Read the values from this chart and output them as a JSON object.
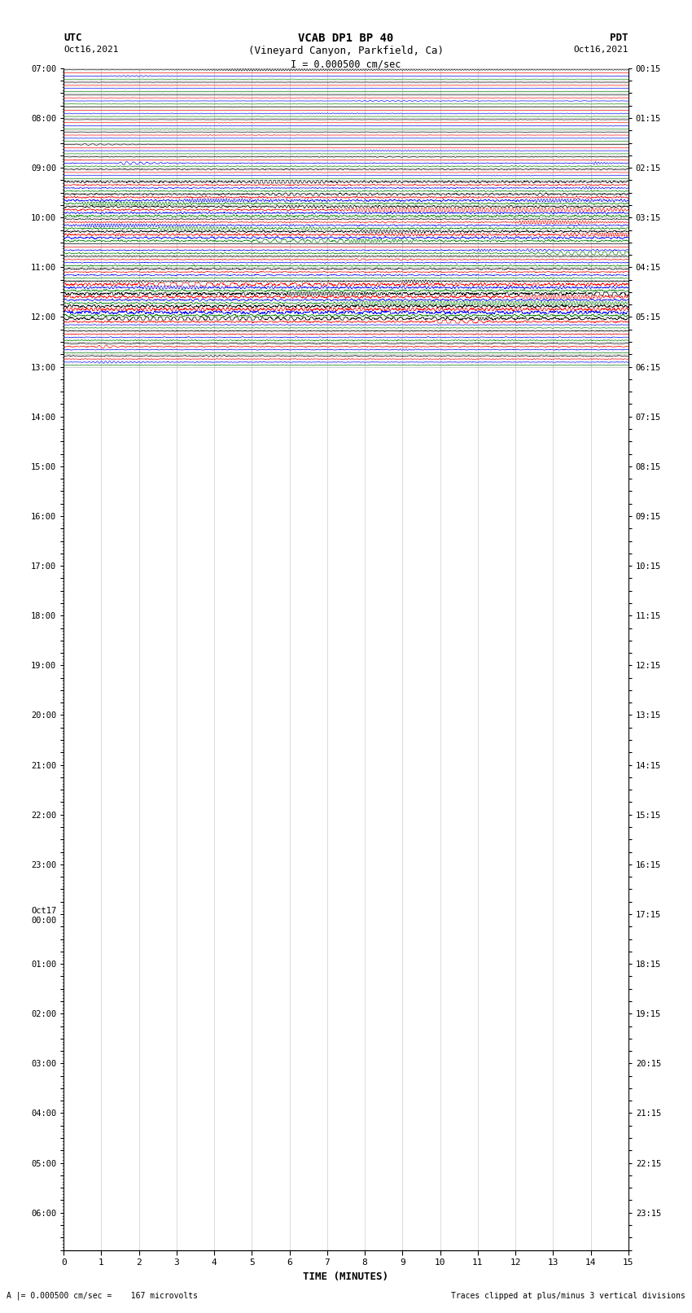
{
  "title_line1": "VCAB DP1 BP 40",
  "title_line2": "(Vineyard Canyon, Parkfield, Ca)",
  "scale_label": "I = 0.000500 cm/sec",
  "utc_label": "UTC",
  "pdt_label": "PDT",
  "date_left": "Oct16,2021",
  "date_right": "Oct16,2021",
  "xlabel": "TIME (MINUTES)",
  "bottom_left": "A |= 0.000500 cm/sec =    167 microvolts",
  "bottom_right": "Traces clipped at plus/minus 3 vertical divisions",
  "trace_color_cycle": [
    "black",
    "red",
    "blue",
    "green"
  ],
  "num_rows": 96,
  "bg_color": "#ffffff",
  "left_times_utc": [
    "07:00",
    "",
    "",
    "",
    "08:00",
    "",
    "",
    "",
    "09:00",
    "",
    "",
    "",
    "10:00",
    "",
    "",
    "",
    "11:00",
    "",
    "",
    "",
    "12:00",
    "",
    "",
    "",
    "13:00",
    "",
    "",
    "",
    "14:00",
    "",
    "",
    "",
    "15:00",
    "",
    "",
    "",
    "16:00",
    "",
    "",
    "",
    "17:00",
    "",
    "",
    "",
    "18:00",
    "",
    "",
    "",
    "19:00",
    "",
    "",
    "",
    "20:00",
    "",
    "",
    "",
    "21:00",
    "",
    "",
    "",
    "22:00",
    "",
    "",
    "",
    "23:00",
    "",
    "",
    "",
    "Oct17\n00:00",
    "",
    "",
    "",
    "01:00",
    "",
    "",
    "",
    "02:00",
    "",
    "",
    "",
    "03:00",
    "",
    "",
    "",
    "04:00",
    "",
    "",
    "",
    "05:00",
    "",
    "",
    "",
    "06:00",
    "",
    "",
    ""
  ],
  "right_times_pdt": [
    "00:15",
    "",
    "",
    "",
    "01:15",
    "",
    "",
    "",
    "02:15",
    "",
    "",
    "",
    "03:15",
    "",
    "",
    "",
    "04:15",
    "",
    "",
    "",
    "05:15",
    "",
    "",
    "",
    "06:15",
    "",
    "",
    "",
    "07:15",
    "",
    "",
    "",
    "08:15",
    "",
    "",
    "",
    "09:15",
    "",
    "",
    "",
    "10:15",
    "",
    "",
    "",
    "11:15",
    "",
    "",
    "",
    "12:15",
    "",
    "",
    "",
    "13:15",
    "",
    "",
    "",
    "14:15",
    "",
    "",
    "",
    "15:15",
    "",
    "",
    "",
    "16:15",
    "",
    "",
    "",
    "17:15",
    "",
    "",
    "",
    "18:15",
    "",
    "",
    "",
    "19:15",
    "",
    "",
    "",
    "20:15",
    "",
    "",
    "",
    "21:15",
    "",
    "",
    "",
    "22:15",
    "",
    "",
    "",
    "23:15",
    "",
    "",
    ""
  ]
}
